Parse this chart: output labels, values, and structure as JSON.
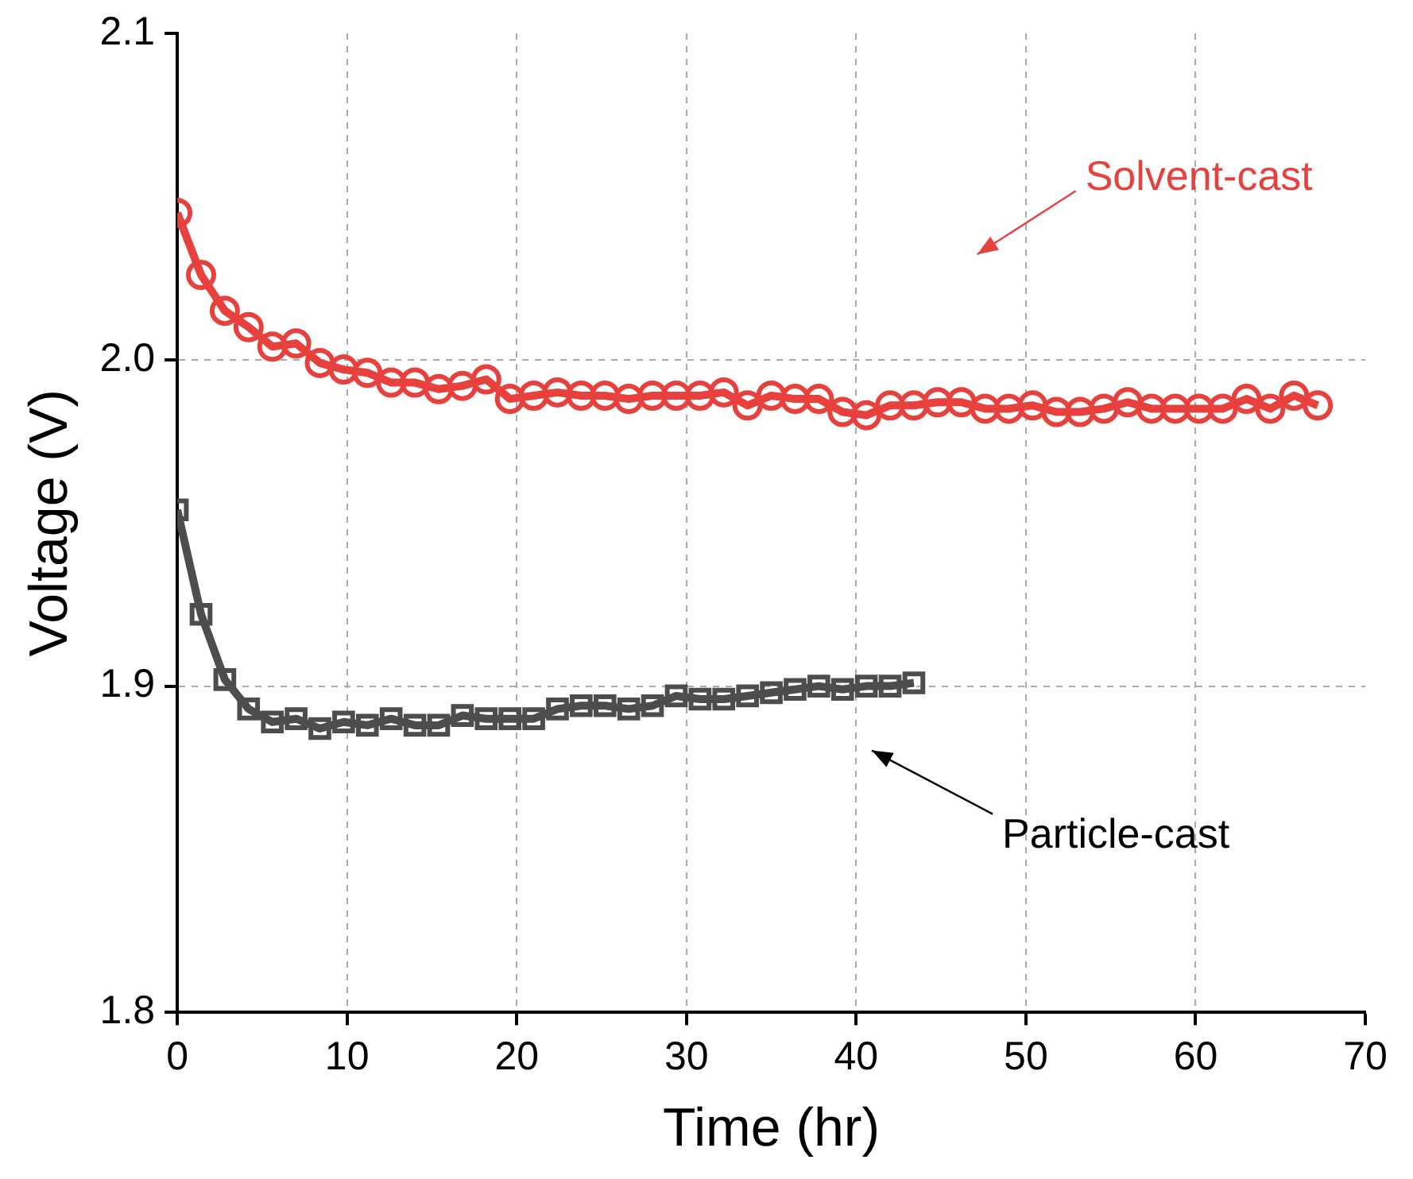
{
  "chart_data": {
    "type": "line",
    "xlabel": "Time (hr)",
    "ylabel": "Voltage (V)",
    "xlim": [
      0,
      70
    ],
    "xticks": [
      0,
      10,
      20,
      30,
      40,
      50,
      60,
      70
    ],
    "ylim": [
      1.8,
      2.1
    ],
    "yticks": [
      1.8,
      1.9,
      {
        "value": 2,
        "label": "2.0"
      },
      2.1
    ],
    "grid": true,
    "legend": false,
    "series": [
      {
        "color": "#e8403c",
        "marker": "circle",
        "x": [
          0,
          1.4,
          2.8,
          4.2,
          5.6,
          7.0,
          8.4,
          9.8,
          11.2,
          12.6,
          14.0,
          15.4,
          16.8,
          18.2,
          19.6,
          21.0,
          22.4,
          23.8,
          25.2,
          26.6,
          28.0,
          29.4,
          30.8,
          32.2,
          33.6,
          35.0,
          36.4,
          37.8,
          39.2,
          40.6,
          42.0,
          43.4,
          44.8,
          46.2,
          47.6,
          49.0,
          50.4,
          51.8,
          53.2,
          54.6,
          56.0,
          57.4,
          58.8,
          60.2,
          61.6,
          63.0,
          64.4,
          65.8,
          67.2
        ],
        "values": [
          2.045,
          2.026,
          2.015,
          2.01,
          2.004,
          2.005,
          1.999,
          1.997,
          1.996,
          1.993,
          1.993,
          1.991,
          1.992,
          1.994,
          1.988,
          1.989,
          1.99,
          1.989,
          1.989,
          1.988,
          1.989,
          1.989,
          1.989,
          1.99,
          1.986,
          1.989,
          1.988,
          1.988,
          1.984,
          1.983,
          1.986,
          1.986,
          1.987,
          1.987,
          1.985,
          1.985,
          1.986,
          1.984,
          1.984,
          1.985,
          1.987,
          1.985,
          1.985,
          1.985,
          1.985,
          1.988,
          1.985,
          1.989,
          1.986
        ]
      },
      {
        "color": "#4d4d4d",
        "marker": "square",
        "x": [
          0,
          1.4,
          2.8,
          4.2,
          5.6,
          7.0,
          8.4,
          9.8,
          11.2,
          12.6,
          14.0,
          15.4,
          16.8,
          18.2,
          19.6,
          21.0,
          22.4,
          23.8,
          25.2,
          26.6,
          28.0,
          29.4,
          30.8,
          32.2,
          33.6,
          35.0,
          36.4,
          37.8,
          39.2,
          40.6,
          42.0,
          43.4
        ],
        "values": [
          1.954,
          1.922,
          1.902,
          1.893,
          1.889,
          1.89,
          1.887,
          1.889,
          1.888,
          1.89,
          1.888,
          1.888,
          1.891,
          1.89,
          1.89,
          1.89,
          1.893,
          1.894,
          1.894,
          1.893,
          1.894,
          1.897,
          1.896,
          1.896,
          1.897,
          1.898,
          1.899,
          1.9,
          1.899,
          1.9,
          1.9,
          1.901
        ]
      }
    ],
    "annotations": [
      "Solvent-cast",
      "Particle-cast"
    ]
  }
}
